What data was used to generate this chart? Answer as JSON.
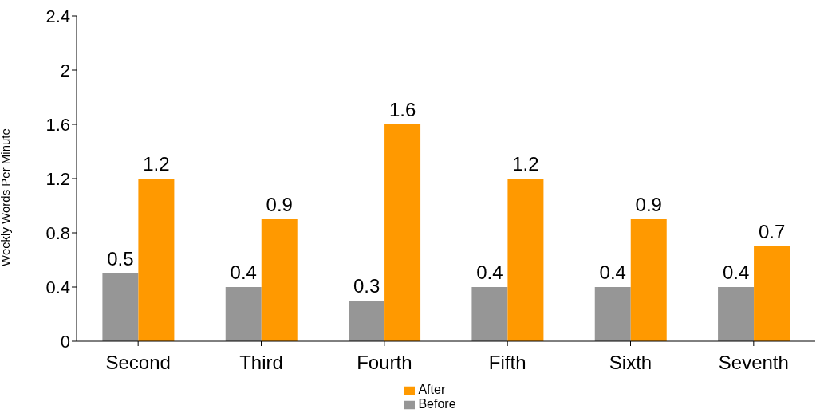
{
  "chart_data": {
    "type": "bar",
    "ylabel": "Weekly Words Per Minute",
    "categories": [
      "Second",
      "Third",
      "Fourth",
      "Fifth",
      "Sixth",
      "Seventh"
    ],
    "series": [
      {
        "name": "Before",
        "color": "#969696",
        "values": [
          0.5,
          0.4,
          0.3,
          0.4,
          0.4,
          0.4
        ]
      },
      {
        "name": "After",
        "color": "#ff9900",
        "values": [
          1.2,
          0.9,
          1.6,
          1.2,
          0.9,
          0.7
        ]
      }
    ],
    "ylim": [
      0,
      2.4
    ],
    "yticks": [
      0,
      0.4,
      0.8,
      1.2,
      1.6,
      2,
      2.4
    ],
    "grid": false,
    "legend": "bottom",
    "data_labels": true
  }
}
